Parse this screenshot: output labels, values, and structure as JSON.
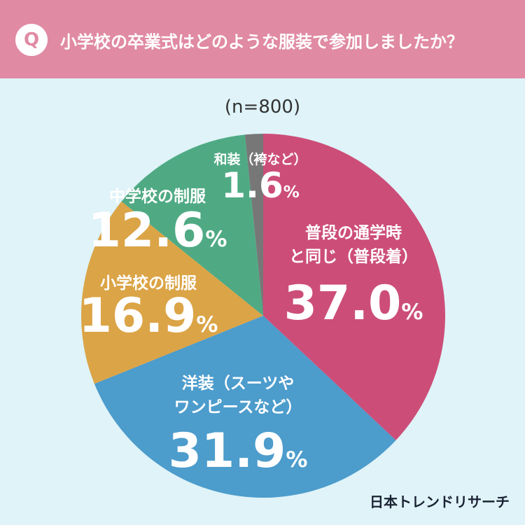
{
  "header": {
    "q_mark": "Q",
    "question": "小学校の卒業式はどのような服装で参加しましたか？"
  },
  "sample_size": "(n=800)",
  "brand": "日本トレンドリサーチ",
  "colors": {
    "header_bg": "#e08aa3",
    "background": "#dff3f8"
  },
  "chart_data": {
    "type": "pie",
    "start_angle_deg": 0,
    "direction": "clockwise",
    "slices": [
      {
        "label_lines": [
          "普段の通学時",
          "と同じ（普段着）"
        ],
        "value": 37.0,
        "display": "37.0",
        "color": "#cc4e78"
      },
      {
        "label_lines": [
          "洋装（スーツや",
          "ワンピースなど）"
        ],
        "value": 31.9,
        "display": "31.9",
        "color": "#4c9ccc"
      },
      {
        "label_lines": [
          "小学校の制服"
        ],
        "value": 16.9,
        "display": "16.9",
        "color": "#dba446"
      },
      {
        "label_lines": [
          "中学校の制服"
        ],
        "value": 12.6,
        "display": "12.6",
        "color": "#4faa84"
      },
      {
        "label_lines": [
          "和装（袴など）"
        ],
        "value": 1.6,
        "display": "1.6",
        "color": "#777777"
      }
    ],
    "unit": "%"
  }
}
